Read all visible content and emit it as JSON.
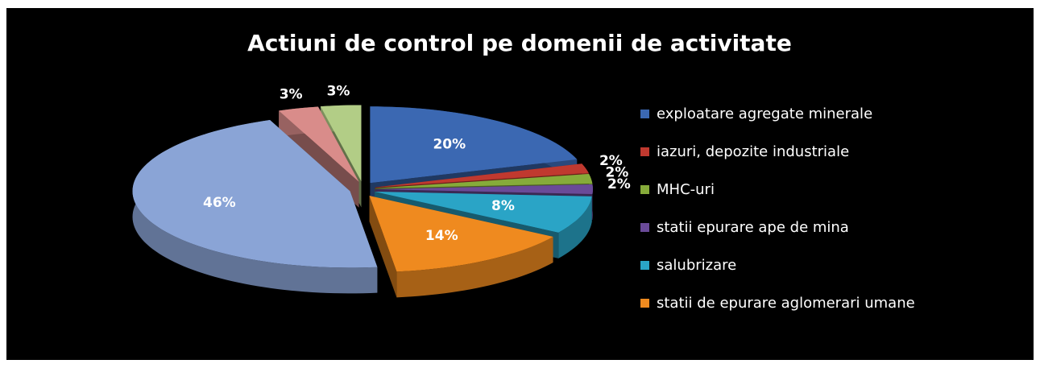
{
  "chart_data": {
    "type": "pie3d",
    "title": "Actiuni de control pe domenii de activitate",
    "categories": [
      "exploatare agregate minerale",
      "iazuri, depozite industriale",
      "MHC-uri",
      "statii epurare ape de mina",
      "salubrizare",
      "statii de epurare aglomerari umane",
      null,
      null,
      null
    ],
    "values": [
      20,
      2,
      2,
      2,
      8,
      14,
      46,
      3,
      3
    ],
    "value_labels": [
      "20%",
      "2%",
      "2%",
      "2%",
      "8%",
      "14%",
      "46%",
      "3%",
      "3%"
    ],
    "colors": [
      "#3b68b2",
      "#c0392f",
      "#86ab3a",
      "#6a4a98",
      "#2aa4c6",
      "#ef8a1f",
      "#8aa4d6",
      "#d98c8a",
      "#b2cd86"
    ],
    "legend": "right"
  }
}
